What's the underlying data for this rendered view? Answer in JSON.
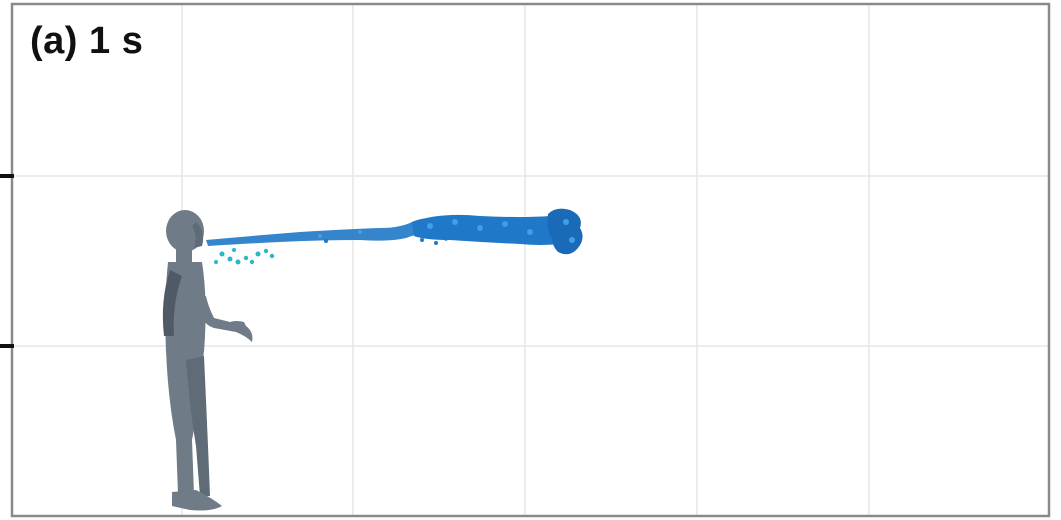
{
  "panel": {
    "label": "(a) 1 s"
  },
  "colors": {
    "background": "#ffffff",
    "frame": "#8a8a8a",
    "grid": "#e6e6e6",
    "tick": "#111111",
    "figure": "#6f7b87",
    "figure_shadow": "#4f5a66",
    "spray_main": "#1f78c8",
    "spray_light": "#3fa0e6",
    "droplet_cyan": "#29b6c6"
  },
  "icons": {
    "figure": "human-figure-icon",
    "spray": "droplet-spray-icon"
  }
}
